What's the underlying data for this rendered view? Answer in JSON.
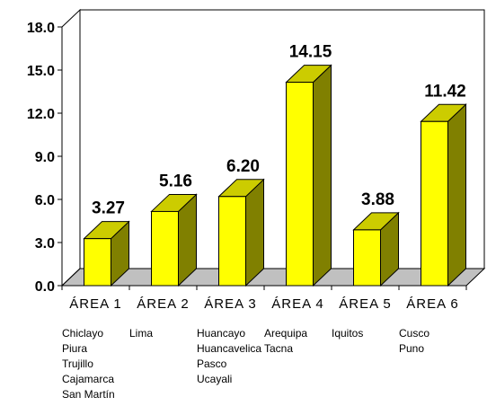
{
  "colors": {
    "bar_front": "#ffff00",
    "bar_side": "#808000",
    "bar_top": "#cccc00",
    "floor": "#c0c0c0",
    "axis": "#000000"
  },
  "chart_data": {
    "type": "bar",
    "title": "",
    "xlabel": "",
    "ylabel": "",
    "style": "3d",
    "grid": false,
    "ylim": [
      0,
      18
    ],
    "yticks": [
      "0.0",
      "3.0",
      "6.0",
      "9.0",
      "12.0",
      "15.0",
      "18.0"
    ],
    "categories": [
      "ÁREA 1",
      "ÁREA 2",
      "ÁREA 3",
      "ÁREA 4",
      "ÁREA 5",
      "ÁREA 6"
    ],
    "values": [
      3.27,
      5.16,
      6.2,
      14.15,
      3.88,
      11.42
    ],
    "data_labels": [
      "3.27",
      "5.16",
      "6.20",
      "14.15",
      "3.88",
      "11.42"
    ],
    "cities": [
      [
        "Chiclayo",
        "Piura",
        "Trujillo",
        "Cajamarca",
        "San Martín"
      ],
      [
        "Lima"
      ],
      [
        "Huancayo",
        "Huancavelica",
        "Pasco",
        "Ucayali"
      ],
      [
        "Arequipa",
        "Tacna"
      ],
      [
        "Iquitos"
      ],
      [
        "Cusco",
        "Puno"
      ]
    ]
  }
}
